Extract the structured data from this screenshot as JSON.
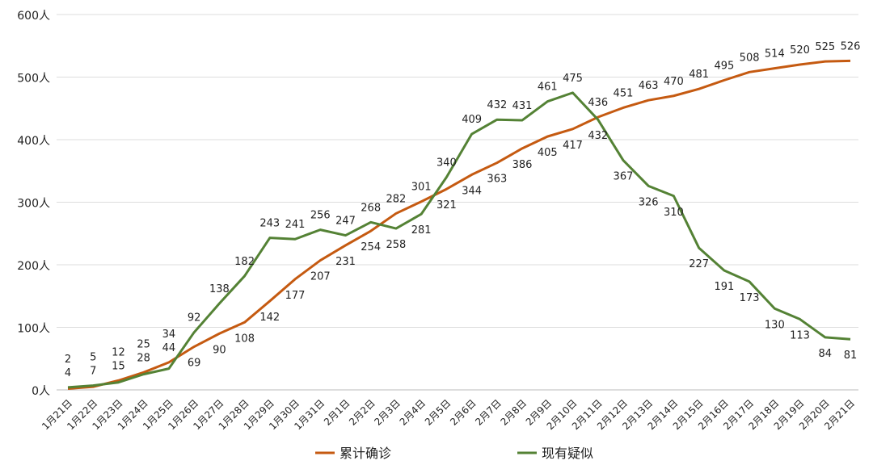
{
  "chart_data": {
    "type": "line",
    "title": "",
    "y_unit": "人",
    "ylim": [
      0,
      600
    ],
    "yticks": [
      0,
      100,
      200,
      300,
      400,
      500,
      600
    ],
    "ytick_labels": [
      "0人",
      "100人",
      "200人",
      "300人",
      "400人",
      "500人",
      "600人"
    ],
    "grid": true,
    "legend_position": "bottom",
    "categories": [
      "1月21日",
      "1月22日",
      "1月23日",
      "1月24日",
      "1月25日",
      "1月26日",
      "1月27日",
      "1月28日",
      "1月29日",
      "1月30日",
      "1月31日",
      "2月1日",
      "2月2日",
      "2月3日",
      "2月4日",
      "2月5日",
      "2月6日",
      "2月7日",
      "2月8日",
      "2月9日",
      "2月10日",
      "2月11日",
      "2月12日",
      "2月13日",
      "2月14日",
      "2月15日",
      "2月16日",
      "2月17日",
      "2月18日",
      "2月19日",
      "2月20日",
      "2月21日"
    ],
    "series": [
      {
        "name": "累计确诊",
        "color": "#C55A11",
        "values": [
          2,
          5,
          15,
          28,
          44,
          69,
          90,
          108,
          142,
          177,
          207,
          231,
          254,
          282,
          301,
          321,
          344,
          363,
          386,
          405,
          417,
          436,
          451,
          463,
          470,
          481,
          495,
          508,
          514,
          520,
          525,
          526
        ]
      },
      {
        "name": "现有疑似",
        "color": "#548235",
        "values": [
          4,
          7,
          12,
          25,
          34,
          92,
          138,
          182,
          243,
          241,
          256,
          247,
          268,
          258,
          281,
          340,
          409,
          432,
          431,
          461,
          475,
          432,
          367,
          326,
          310,
          227,
          191,
          173,
          130,
          113,
          84,
          81
        ]
      }
    ]
  }
}
